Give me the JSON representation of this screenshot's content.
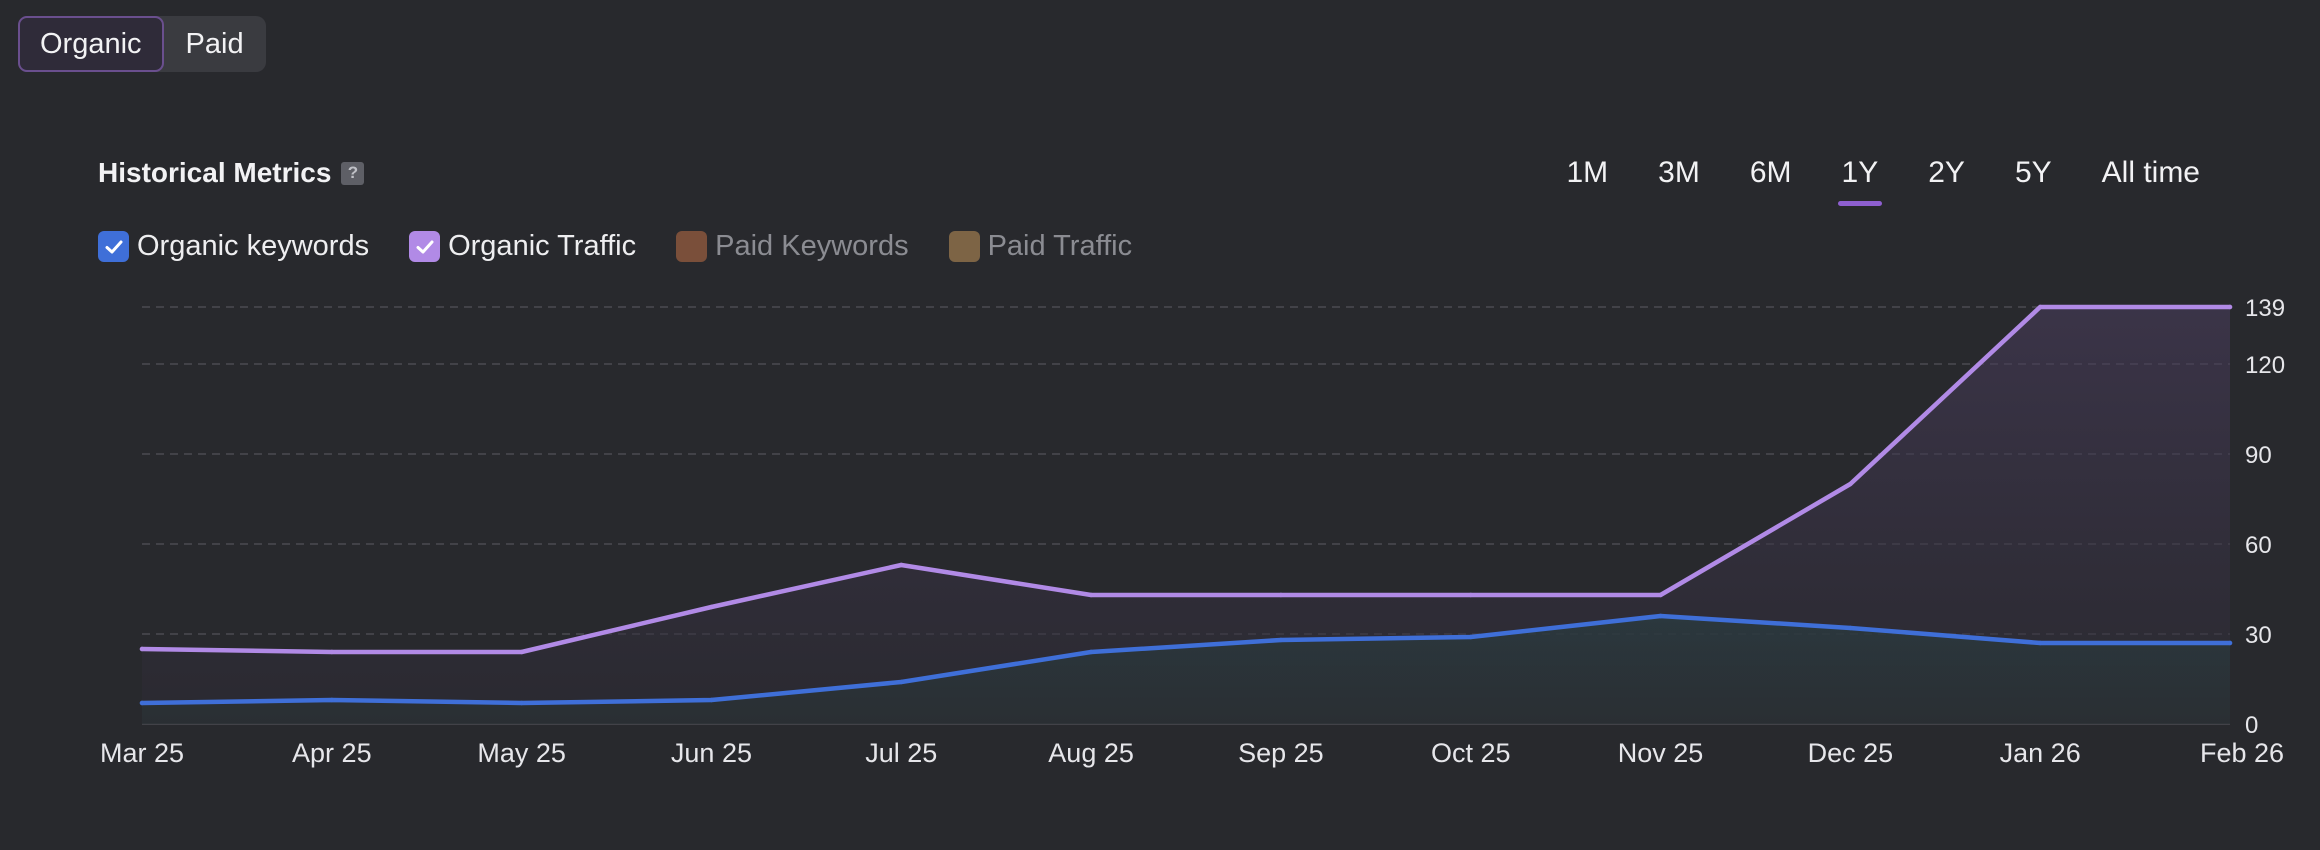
{
  "tabs": [
    {
      "label": "Organic",
      "active": true
    },
    {
      "label": "Paid",
      "active": false
    }
  ],
  "title": "Historical Metrics",
  "help_label": "?",
  "ranges": [
    {
      "label": "1M",
      "active": false
    },
    {
      "label": "3M",
      "active": false
    },
    {
      "label": "6M",
      "active": false
    },
    {
      "label": "1Y",
      "active": true
    },
    {
      "label": "2Y",
      "active": false
    },
    {
      "label": "5Y",
      "active": false
    },
    {
      "label": "All time",
      "active": false
    }
  ],
  "legend": [
    {
      "label": "Organic keywords",
      "checked": true,
      "color": "#3f6fd8"
    },
    {
      "label": "Organic Traffic",
      "checked": true,
      "color": "#b18ae6"
    },
    {
      "label": "Paid Keywords",
      "checked": false,
      "color": "#7a4f3a"
    },
    {
      "label": "Paid Traffic",
      "checked": false,
      "color": "#7d6445"
    }
  ],
  "chart_data": {
    "type": "area",
    "categories": [
      "Mar 25",
      "Apr 25",
      "May 25",
      "Jun 25",
      "Jul 25",
      "Aug 25",
      "Sep 25",
      "Oct 25",
      "Nov 25",
      "Dec 25",
      "Jan 26",
      "Feb 26"
    ],
    "series": [
      {
        "name": "Organic keywords",
        "color": "#3f6fd8",
        "values": [
          7,
          8,
          7,
          8,
          14,
          24,
          28,
          29,
          36,
          32,
          27,
          27
        ]
      },
      {
        "name": "Organic Traffic",
        "color": "#b18ae6",
        "values": [
          25,
          24,
          24,
          39,
          53,
          43,
          43,
          43,
          43,
          80,
          139,
          139
        ]
      }
    ],
    "y_ticks": [
      0,
      30,
      60,
      90,
      120,
      139
    ],
    "ylim": [
      0,
      139
    ],
    "y_axis_position": "right",
    "grid": true
  }
}
